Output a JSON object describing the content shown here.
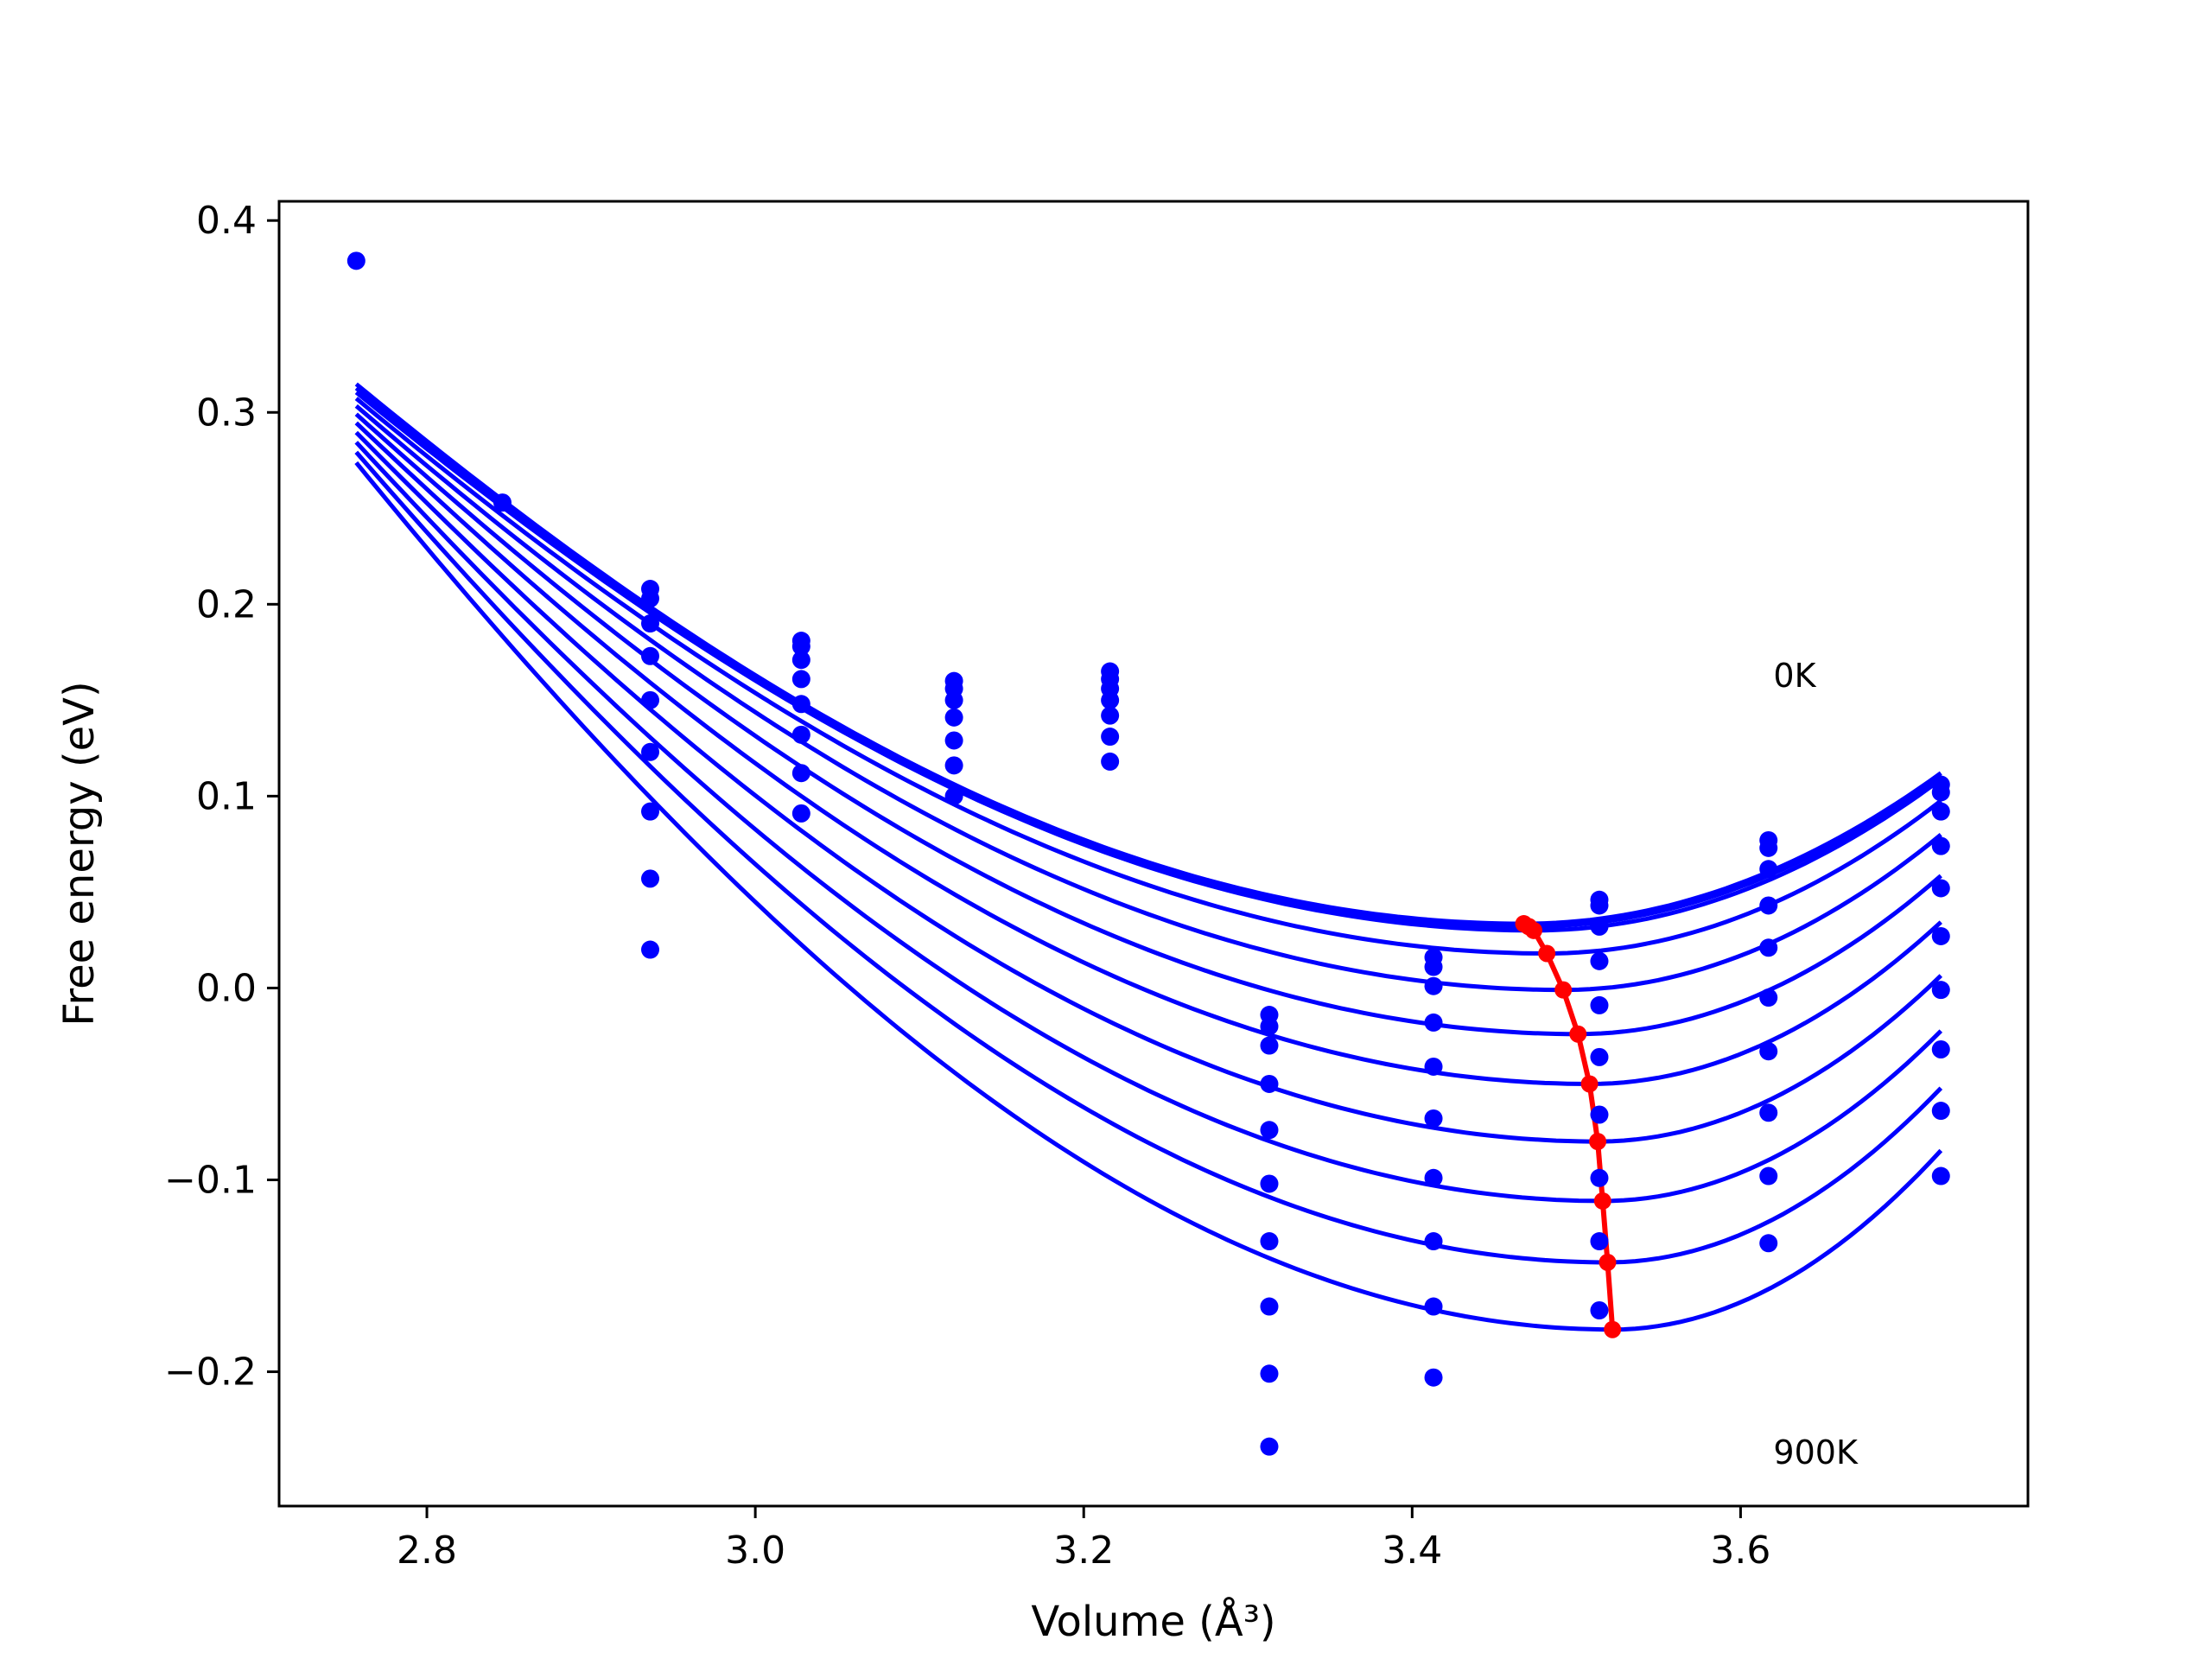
{
  "chart_data": {
    "type": "scatter",
    "xlabel": "Volume (Å³)",
    "ylabel": "Free energy (eV)",
    "xlim": [
      2.71,
      3.775
    ],
    "ylim": [
      -0.27,
      0.41
    ],
    "xticks": [
      2.8,
      3.0,
      3.2,
      3.4,
      3.6
    ],
    "xtick_labels": [
      "2.8",
      "3.0",
      "3.2",
      "3.4",
      "3.6"
    ],
    "yticks": [
      -0.2,
      -0.1,
      0.0,
      0.1,
      0.2,
      0.3,
      0.4
    ],
    "ytick_labels": [
      "−0.2",
      "−0.1",
      "0.0",
      "0.1",
      "0.2",
      "0.3",
      "0.4"
    ],
    "grid": false,
    "legend": "none",
    "colors": {
      "points": "#0000ff",
      "curves": "#0000ff",
      "minimum_line": "#ff0000"
    },
    "annotations": [
      {
        "text": "0K",
        "x": 3.62,
        "y": 0.157
      },
      {
        "text": "900K",
        "x": 3.62,
        "y": -0.248
      }
    ],
    "scatter_points": [
      {
        "x": 2.757,
        "y": [
          0.379
        ]
      },
      {
        "x": 2.846,
        "y": [
          0.253
        ]
      },
      {
        "x": 2.936,
        "y": [
          0.208,
          0.203,
          0.19,
          0.173,
          0.15,
          0.123,
          0.092,
          0.057,
          0.02
        ]
      },
      {
        "x": 3.028,
        "y": [
          0.181,
          0.178,
          0.171,
          0.161,
          0.148,
          0.132,
          0.112,
          0.091
        ]
      },
      {
        "x": 3.121,
        "y": [
          0.16,
          0.156,
          0.15,
          0.141,
          0.129,
          0.116,
          0.1
        ]
      },
      {
        "x": 3.216,
        "y": [
          0.165,
          0.161,
          0.156,
          0.15,
          0.142,
          0.131,
          0.118
        ]
      },
      {
        "x": 3.313,
        "y": [
          -0.014,
          -0.02,
          -0.03,
          -0.05,
          -0.074,
          -0.102,
          -0.132,
          -0.166,
          -0.201,
          -0.239
        ]
      },
      {
        "x": 3.413,
        "y": [
          0.016,
          0.011,
          0.001,
          -0.018,
          -0.041,
          -0.068,
          -0.099,
          -0.132,
          -0.166,
          -0.203
        ]
      },
      {
        "x": 3.514,
        "y": [
          0.046,
          0.043,
          0.032,
          0.014,
          -0.009,
          -0.036,
          -0.066,
          -0.099,
          -0.132,
          -0.168
        ]
      },
      {
        "x": 3.617,
        "y": [
          0.077,
          0.073,
          0.062,
          0.043,
          0.021,
          -0.005,
          -0.033,
          -0.065,
          -0.098,
          -0.133
        ]
      },
      {
        "x": 3.722,
        "y": [
          0.106,
          0.102,
          0.092,
          0.074,
          0.052,
          0.027,
          -0.001,
          -0.032,
          -0.064,
          -0.098
        ]
      }
    ],
    "curves": [
      {
        "vmin": 3.468,
        "fmin": 0.0335
      },
      {
        "vmin": 3.471,
        "fmin": 0.032
      },
      {
        "vmin": 3.474,
        "fmin": 0.03
      },
      {
        "vmin": 3.482,
        "fmin": 0.018
      },
      {
        "vmin": 3.492,
        "fmin": -0.001
      },
      {
        "vmin": 3.501,
        "fmin": -0.024
      },
      {
        "vmin": 3.508,
        "fmin": -0.05
      },
      {
        "vmin": 3.513,
        "fmin": -0.08
      },
      {
        "vmin": 3.516,
        "fmin": -0.111
      },
      {
        "vmin": 3.519,
        "fmin": -0.143
      },
      {
        "vmin": 3.522,
        "fmin": -0.178
      }
    ],
    "minimum_line": {
      "x": [
        3.468,
        3.471,
        3.474,
        3.482,
        3.492,
        3.501,
        3.508,
        3.513,
        3.516,
        3.519,
        3.522
      ],
      "y": [
        0.0335,
        0.032,
        0.03,
        0.018,
        -0.001,
        -0.024,
        -0.05,
        -0.08,
        -0.111,
        -0.143,
        -0.178
      ]
    }
  }
}
